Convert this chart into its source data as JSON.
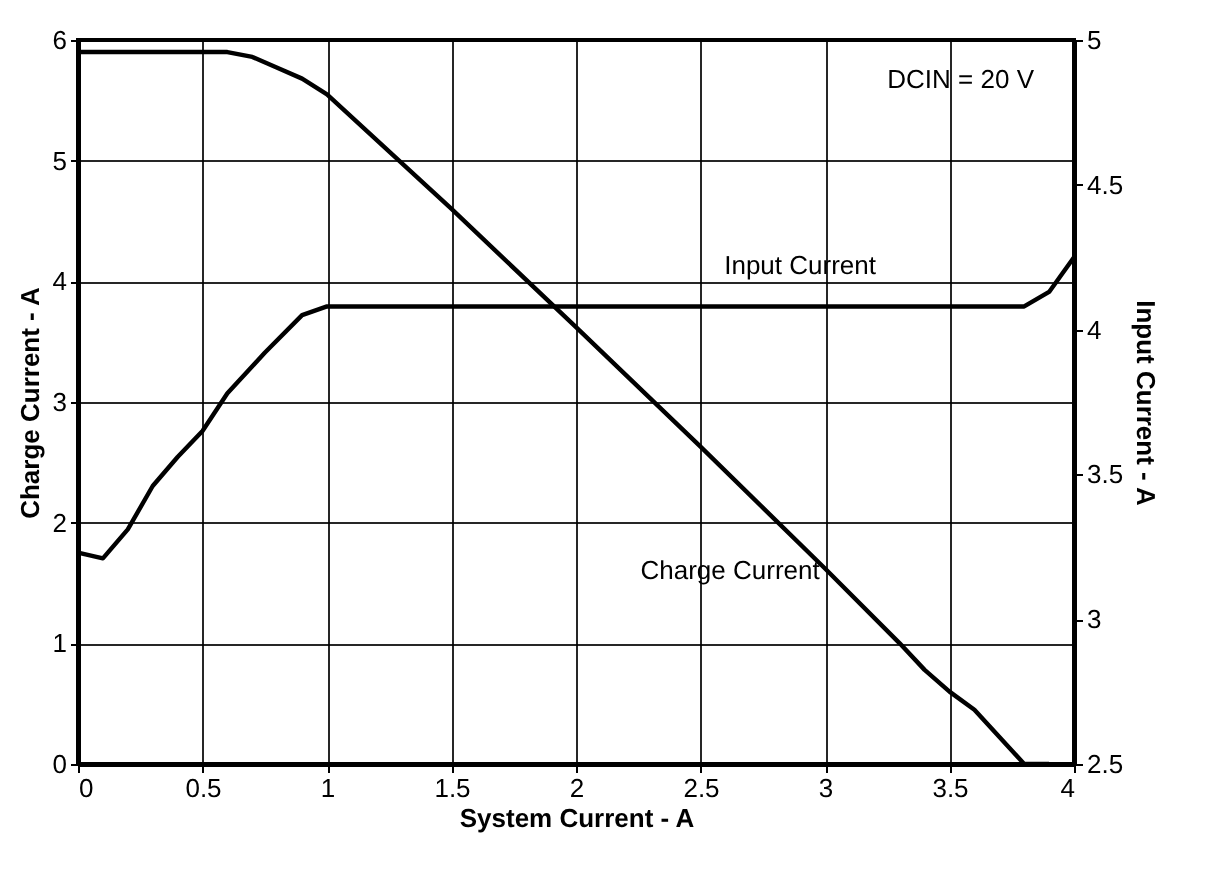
{
  "chart_data": {
    "type": "line",
    "xlabel": "System Current - A",
    "ylabel": "Charge Current - A",
    "y2label": "Input Current - A",
    "annotations": [
      "DCIN = 20 V"
    ],
    "series": [
      {
        "name": "Charge Current",
        "color": "#000000",
        "x": [
          0,
          0.6,
          0.7,
          0.8,
          0.9,
          1.0,
          1.5,
          2.0,
          2.5,
          3.0,
          3.3,
          3.4,
          3.5,
          3.6,
          3.8,
          3.9
        ],
        "values": [
          5.9,
          5.9,
          5.86,
          5.77,
          5.68,
          5.55,
          4.6,
          3.62,
          2.63,
          1.62,
          1.0,
          0.78,
          0.6,
          0.45,
          0.0,
          0.0
        ]
      },
      {
        "name": "Input Current",
        "color": "#000000",
        "axis": "y2",
        "x": [
          0,
          0.1,
          0.2,
          0.3,
          0.4,
          0.5,
          0.6,
          0.75,
          0.9,
          1.0,
          3.8,
          3.9,
          4.0
        ],
        "values": [
          3.23,
          3.21,
          3.31,
          3.46,
          3.56,
          3.65,
          3.78,
          3.92,
          4.05,
          4.08,
          4.08,
          4.13,
          4.25
        ]
      }
    ],
    "xlim": [
      0,
      4
    ],
    "xticks": [
      0,
      0.5,
      1,
      1.5,
      2,
      2.5,
      3,
      3.5,
      4
    ],
    "ylim": [
      0,
      6
    ],
    "yticks": [
      0,
      1,
      2,
      3,
      4,
      5,
      6
    ],
    "y2lim": [
      2.5,
      5
    ],
    "y2ticks": [
      2.5,
      3,
      3.5,
      4,
      4.5,
      5
    ],
    "grid": true,
    "line_style": "solid",
    "marker": "none"
  }
}
